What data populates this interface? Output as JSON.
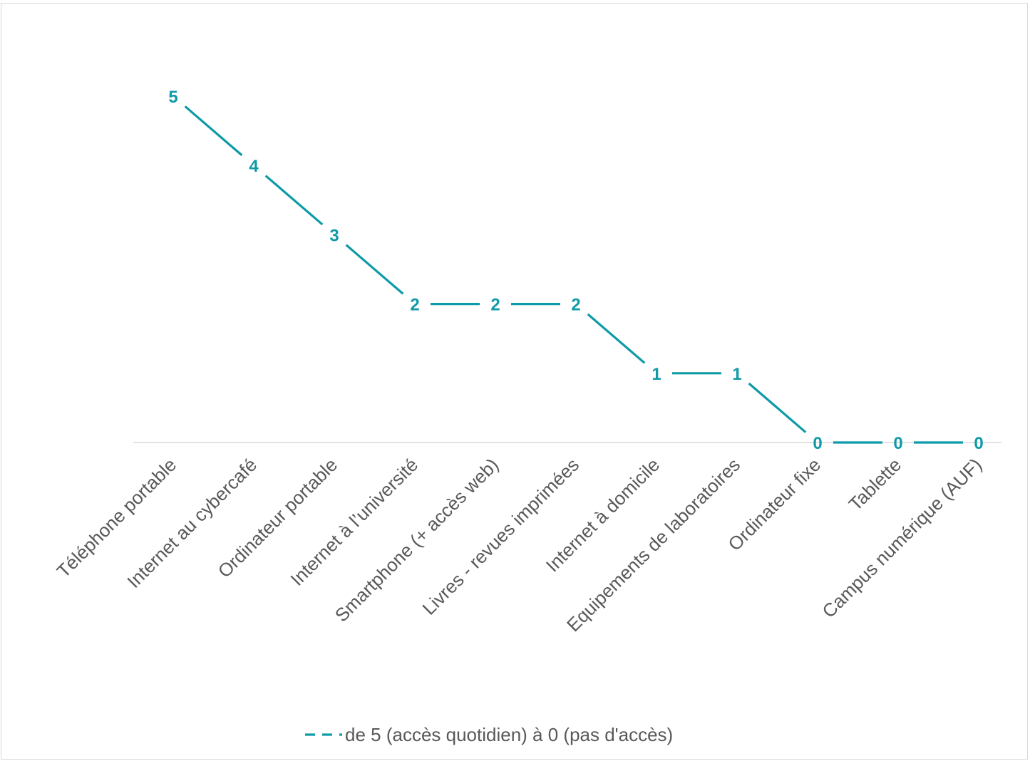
{
  "chart_data": {
    "type": "line",
    "title": "",
    "xlabel": "",
    "ylabel": "",
    "categories": [
      "Téléphone portable",
      "Internet au cybercafé",
      "Ordinateur portable",
      "Internet à l’université",
      "Smartphone (+ accès web)",
      "Livres - revues imprimées",
      "Internet à domicile",
      "Equipements de laboratoires",
      "Ordinateur fixe",
      "Tablette",
      "Campus numérique (AUF)"
    ],
    "series": [
      {
        "name": "de 5 (accès quotidien) à 0 (pas d'accès)",
        "values": [
          5,
          4,
          3,
          2,
          2,
          2,
          1,
          1,
          0,
          0,
          0
        ],
        "color": "#0e9aa7"
      }
    ],
    "ylim": [
      0,
      5
    ],
    "grid": false,
    "data_labels": true,
    "legend": "bottom",
    "legend_marker": "dashed-line",
    "axis_color": "#d9d9d9",
    "label_color": "#595959"
  }
}
